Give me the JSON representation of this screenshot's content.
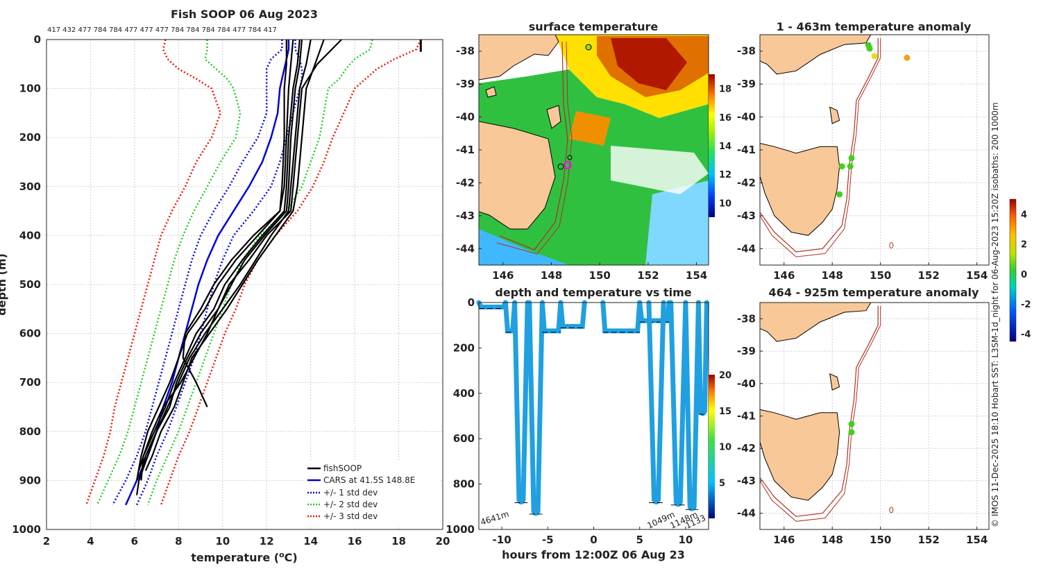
{
  "page": {
    "title": "Fish SOOP 06 Aug 2023",
    "subtitle_codes": "417 432 477 784 784 477 477 477 784 784 784 784 477 784 417",
    "credit": "© IMOS 11-Dec-2025 18:10 Hobart SST: L3SM-1d_night for 06-Aug-2023 15:20Z isobaths: 200  1000m"
  },
  "colors": {
    "fishsoop": "#000000",
    "cars": "#0000dd",
    "std1": "#0000ee",
    "std2": "#22cc22",
    "std3": "#ee1100",
    "land": "#f8c898",
    "isobath": "#b03020"
  },
  "chart_data": [
    {
      "type": "line",
      "title": "Fish SOOP 06 Aug 2023",
      "xlabel": "temperature (°C)",
      "xlabel_main": "temperature (",
      "xlabel_sup": "o",
      "xlabel_unit": "C)",
      "ylabel": "depth (m)",
      "xlim": [
        2,
        20
      ],
      "ylim": [
        1000,
        0
      ],
      "xticks": [
        2,
        4,
        6,
        8,
        10,
        12,
        14,
        16,
        18,
        20
      ],
      "yticks": [
        0,
        100,
        200,
        300,
        400,
        500,
        600,
        700,
        800,
        900,
        1000
      ],
      "legend": [
        "fishSOOP",
        "CARS at 41.5S 148.8E",
        "+/- 1 std dev",
        "+/- 2 std dev",
        "+/- 3 std dev"
      ],
      "legend_position": "bottom-right",
      "depth": [
        0,
        20,
        40,
        60,
        80,
        100,
        150,
        200,
        250,
        300,
        350,
        400,
        450,
        500,
        550,
        600,
        650,
        700,
        750,
        800,
        850,
        900,
        950
      ],
      "cars_mean": [
        13.0,
        13.0,
        12.9,
        12.8,
        12.7,
        12.6,
        12.5,
        12.2,
        11.8,
        11.2,
        10.5,
        9.8,
        9.3,
        8.9,
        8.6,
        8.3,
        8.0,
        7.7,
        7.3,
        7.0,
        6.6,
        6.1,
        5.6
      ],
      "std1_low": [
        12.7,
        12.7,
        12.2,
        12.0,
        12.0,
        12.0,
        12.0,
        11.6,
        10.9,
        10.3,
        9.6,
        9.0,
        8.6,
        8.3,
        8.0,
        7.7,
        7.4,
        7.1,
        6.8,
        6.5,
        6.1,
        5.6,
        5.0
      ],
      "std1_high": [
        13.3,
        13.3,
        13.5,
        13.6,
        13.6,
        13.5,
        13.2,
        12.9,
        12.6,
        12.2,
        11.4,
        10.5,
        10.0,
        9.6,
        9.3,
        9.0,
        8.7,
        8.3,
        7.9,
        7.5,
        7.0,
        6.6,
        6.1
      ],
      "std2_low": [
        9.3,
        9.3,
        9.2,
        9.7,
        10.2,
        10.5,
        10.8,
        10.6,
        9.9,
        9.3,
        8.7,
        8.2,
        7.8,
        7.5,
        7.2,
        6.9,
        6.6,
        6.3,
        6.0,
        5.7,
        5.3,
        4.8,
        4.3
      ],
      "std2_high": [
        16.8,
        16.7,
        16.0,
        15.6,
        15.3,
        14.8,
        14.6,
        14.4,
        14.0,
        13.6,
        12.9,
        11.7,
        10.9,
        10.4,
        10.0,
        9.6,
        9.2,
        8.8,
        8.4,
        8.0,
        7.5,
        7.0,
        6.6
      ],
      "std3_low": [
        7.4,
        7.3,
        7.5,
        8.0,
        8.8,
        9.5,
        9.9,
        9.5,
        8.8,
        8.3,
        7.7,
        7.2,
        6.9,
        6.6,
        6.3,
        6.0,
        5.7,
        5.4,
        5.1,
        4.9,
        4.6,
        4.2,
        3.8
      ],
      "std3_high": [
        19.0,
        18.8,
        17.8,
        17.0,
        16.5,
        16.0,
        15.5,
        15.0,
        14.6,
        14.1,
        13.4,
        12.4,
        11.6,
        11.0,
        10.6,
        10.1,
        9.7,
        9.3,
        8.9,
        8.5,
        8.0,
        7.6,
        7.2
      ],
      "fishsoop_profiles": [
        {
          "depth": [
            0,
            50,
            100,
            200,
            300,
            350,
            400,
            450,
            500,
            550,
            600,
            650,
            700,
            750,
            800,
            850,
            880
          ],
          "temp": [
            13.5,
            13.4,
            13.2,
            13.0,
            12.9,
            12.8,
            11.8,
            10.9,
            10.1,
            9.6,
            8.8,
            8.3,
            7.8,
            7.4,
            6.9,
            6.4,
            6.2
          ]
        },
        {
          "depth": [
            0,
            50,
            100,
            200,
            300,
            350,
            400,
            450,
            500,
            550,
            600,
            650,
            700,
            750,
            800,
            850,
            900,
            930
          ],
          "temp": [
            14.0,
            13.8,
            13.5,
            13.3,
            13.1,
            13.0,
            12.2,
            11.5,
            10.8,
            10.0,
            9.2,
            8.5,
            8.0,
            7.5,
            7.0,
            6.6,
            6.2,
            6.1
          ]
        },
        {
          "depth": [
            0,
            50,
            100,
            200,
            300,
            350,
            400,
            450,
            500,
            550,
            600,
            650,
            700,
            750,
            800,
            850,
            900
          ],
          "temp": [
            13.2,
            13.1,
            13.0,
            12.9,
            12.8,
            12.6,
            11.6,
            10.6,
            9.8,
            9.2,
            8.4,
            8.0,
            7.6,
            7.1,
            6.6,
            6.3,
            6.1
          ]
        },
        {
          "depth": [
            0,
            50,
            100,
            200,
            300,
            350,
            400,
            450,
            500,
            550,
            600,
            650,
            700,
            750,
            800,
            850,
            880
          ],
          "temp": [
            14.6,
            14.2,
            13.8,
            13.6,
            13.4,
            13.2,
            12.4,
            11.6,
            10.9,
            10.2,
            9.4,
            8.6,
            8.2,
            7.8,
            7.2,
            6.8,
            6.5
          ]
        },
        {
          "depth": [
            0,
            50,
            100,
            200,
            300,
            350,
            400,
            450,
            500,
            550,
            600,
            650,
            700,
            750,
            800,
            850,
            900
          ],
          "temp": [
            15.4,
            14.3,
            13.6,
            13.4,
            13.2,
            13.1,
            12.0,
            11.2,
            10.3,
            9.8,
            9.0,
            8.4,
            7.9,
            7.6,
            7.0,
            6.5,
            6.2
          ]
        },
        {
          "depth": [
            0,
            50,
            100,
            200,
            300,
            350,
            400,
            450,
            500,
            550,
            600,
            650,
            700,
            750
          ],
          "temp": [
            12.9,
            12.9,
            12.8,
            12.8,
            12.7,
            12.6,
            11.4,
            10.4,
            9.6,
            9.0,
            8.3,
            8.2,
            8.8,
            9.3
          ]
        },
        {
          "depth": [
            0,
            50,
            100,
            200,
            300,
            350,
            400,
            450,
            500,
            550,
            600,
            650,
            700,
            750,
            800,
            850,
            900
          ],
          "temp": [
            13.6,
            13.5,
            13.3,
            13.1,
            13.0,
            12.9,
            11.9,
            11.0,
            10.4,
            9.8,
            9.3,
            8.7,
            8.1,
            7.3,
            6.8,
            6.4,
            6.3
          ]
        }
      ],
      "surface_marker": {
        "temp": 19.0,
        "depth": [
          0,
          25
        ]
      }
    },
    {
      "type": "heatmap",
      "title": "surface temperature",
      "lon_range": [
        145,
        154.5
      ],
      "lat_range": [
        -44.5,
        -37.5
      ],
      "xticks": [
        146,
        148,
        150,
        152,
        154
      ],
      "yticks": [
        -38,
        -39,
        -40,
        -41,
        -42,
        -43,
        -44
      ],
      "colorbar_ticks": [
        10,
        12,
        14,
        16,
        18
      ],
      "colorbar_range": [
        9,
        19
      ]
    },
    {
      "type": "scatter",
      "title": "depth and temperature vs time",
      "xlabel": "hours from 12:00Z 06 Aug 23",
      "xlim": [
        -12.5,
        12.5
      ],
      "ylim": [
        1000,
        0
      ],
      "xticks": [
        -10,
        -5,
        0,
        5,
        10
      ],
      "yticks": [
        0,
        200,
        400,
        600,
        800,
        1000
      ],
      "colorbar_ticks": [
        5,
        10,
        15,
        20
      ],
      "colorbar_range": [
        0,
        20
      ],
      "bottom_depth_labels": [
        "4641m",
        "1049m",
        "1148m",
        "1133"
      ],
      "dives": [
        {
          "start": -12.5,
          "end": -9.6,
          "max": 20
        },
        {
          "start": -9.6,
          "end": -8.6,
          "max": 125
        },
        {
          "start": -8.6,
          "end": -7.2,
          "max": 870
        },
        {
          "start": -7.0,
          "end": -5.6,
          "max": 920
        },
        {
          "start": -5.6,
          "end": -3.6,
          "max": 125
        },
        {
          "start": -3.6,
          "end": -1.0,
          "max": 105
        },
        {
          "start": 1.0,
          "end": 5.0,
          "max": 125
        },
        {
          "start": 5.0,
          "end": 8.2,
          "max": 80
        },
        {
          "start": 6.0,
          "end": 7.6,
          "max": 870
        },
        {
          "start": 8.4,
          "end": 10.0,
          "max": 880
        },
        {
          "start": 10.0,
          "end": 11.4,
          "max": 900
        },
        {
          "start": 11.4,
          "end": 12.3,
          "max": 480
        }
      ]
    },
    {
      "type": "scatter",
      "title": "1 - 463m temperature anomaly",
      "lon_range": [
        145,
        154.5
      ],
      "lat_range": [
        -44.5,
        -37.5
      ],
      "xticks": [
        146,
        148,
        150,
        152,
        154
      ],
      "yticks": [
        -38,
        -39,
        -40,
        -41,
        -42,
        -43,
        -44
      ],
      "colorbar_ticks": [
        4,
        2,
        0,
        -2,
        -4
      ],
      "colorbar_range": [
        -4.5,
        5
      ],
      "points": [
        {
          "lon": 149.5,
          "lat": -37.82,
          "anom": 0.2
        },
        {
          "lon": 149.55,
          "lat": -37.92,
          "anom": 0.4
        },
        {
          "lon": 149.75,
          "lat": -38.15,
          "anom": 2.0
        },
        {
          "lon": 151.1,
          "lat": -38.2,
          "anom": 3.0
        },
        {
          "lon": 148.8,
          "lat": -41.25,
          "anom": 0.6
        },
        {
          "lon": 148.4,
          "lat": -41.5,
          "anom": 0.6
        },
        {
          "lon": 148.75,
          "lat": -41.5,
          "anom": 0.6
        },
        {
          "lon": 148.3,
          "lat": -42.35,
          "anom": 0.6
        }
      ]
    },
    {
      "type": "scatter",
      "title": "464 - 925m temperature anomaly",
      "lon_range": [
        145,
        154.5
      ],
      "lat_range": [
        -44.5,
        -37.5
      ],
      "xticks": [
        146,
        148,
        150,
        152,
        154
      ],
      "yticks": [
        -38,
        -39,
        -40,
        -41,
        -42,
        -43,
        -44
      ],
      "points": [
        {
          "lon": 148.8,
          "lat": -41.25,
          "anom": 0.6
        },
        {
          "lon": 148.8,
          "lat": -41.5,
          "anom": 0.6
        }
      ]
    }
  ]
}
